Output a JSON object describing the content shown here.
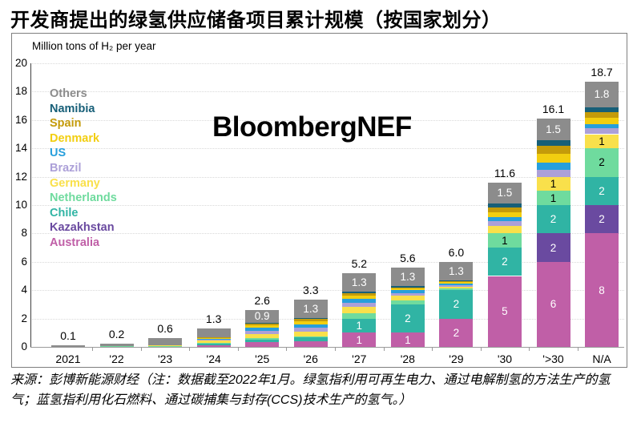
{
  "title": "开发商提出的绿氢供应储备项目累计规模（按国家划分）",
  "watermark": "BloombergNEF",
  "source_note": "来源：彭博新能源财经（注：数据截至2022年1月。绿氢指利用可再生电力、通过电解制氢的方法生产的氢气；蓝氢指利用化石燃料、通过碳捕集与封存(CCS)技术生产的氢气。）",
  "chart_data": {
    "type": "bar",
    "stacked": true,
    "title": "开发商提出的绿氢供应储备项目累计规模（按国家划分）",
    "ylabel": "Million tons of H₂ per year",
    "ylim": [
      0,
      20
    ],
    "ytick_step": 2,
    "grid": "horizontal dotted",
    "legend_position": "inside top-left, colored text, top-to-bottom reverse of stack order",
    "categories": [
      "2021",
      "'22",
      "'23",
      "'24",
      "'25",
      "'26",
      "'27",
      "'28",
      "'29",
      "'30",
      "'>30",
      "N/A"
    ],
    "totals": [
      "0.1",
      "0.2",
      "0.6",
      "1.3",
      "2.6",
      "3.3",
      "5.2",
      "5.6",
      "6.0",
      "11.6",
      "16.1",
      "18.7"
    ],
    "series": [
      {
        "name": "Australia",
        "color": "#c05fa7",
        "label_color": "#ffffff",
        "values": [
          0,
          0,
          0,
          0.1,
          0.35,
          0.4,
          1,
          1,
          2,
          5,
          6,
          8
        ]
      },
      {
        "name": "Kazakhstan",
        "color": "#6a4aa0",
        "label_color": "#ffffff",
        "values": [
          0,
          0,
          0,
          0,
          0,
          0,
          0,
          0,
          0,
          0,
          2,
          2
        ]
      },
      {
        "name": "Chile",
        "color": "#30b4a4",
        "label_color": "#ffffff",
        "values": [
          0,
          0,
          0,
          0.1,
          0.15,
          0.25,
          1,
          2,
          2,
          2,
          2,
          2
        ]
      },
      {
        "name": "Netherlands",
        "color": "#6fdb9e",
        "label_color": "#000000",
        "values": [
          0,
          0.05,
          0.05,
          0.1,
          0.1,
          0.1,
          0.4,
          0.3,
          0.1,
          1,
          1,
          2
        ]
      },
      {
        "name": "Germany",
        "color": "#f9e04b",
        "label_color": "#000000",
        "values": [
          0,
          0,
          0.05,
          0.15,
          0.3,
          0.35,
          0.4,
          0.3,
          0.15,
          0.55,
          1,
          1
        ]
      },
      {
        "name": "Brazil",
        "color": "#aca0d8",
        "label_color": "#000000",
        "values": [
          0,
          0,
          0,
          0.05,
          0.25,
          0.25,
          0.3,
          0.2,
          0.1,
          0.3,
          0.5,
          0.4
        ]
      },
      {
        "name": "US",
        "color": "#279fdc",
        "label_color": "#ffffff",
        "values": [
          0,
          0,
          0,
          0.05,
          0.2,
          0.25,
          0.3,
          0.2,
          0.1,
          0.3,
          0.5,
          0.3
        ]
      },
      {
        "name": "Denmark",
        "color": "#f2ce10",
        "label_color": "#000000",
        "values": [
          0,
          0,
          0,
          0.05,
          0.15,
          0.2,
          0.2,
          0.1,
          0.1,
          0.35,
          0.6,
          0.45
        ]
      },
      {
        "name": "Spain",
        "color": "#c49b0a",
        "label_color": "#ffffff",
        "values": [
          0,
          0,
          0,
          0.05,
          0.15,
          0.15,
          0.2,
          0.1,
          0.1,
          0.35,
          0.6,
          0.4
        ]
      },
      {
        "name": "Namibia",
        "color": "#175f78",
        "label_color": "#ffffff",
        "values": [
          0,
          0,
          0,
          0,
          0.05,
          0.05,
          0.1,
          0.1,
          0.05,
          0.25,
          0.4,
          0.35
        ]
      },
      {
        "name": "Others",
        "color": "#8c8c8c",
        "label_color": "#ffffff",
        "values": [
          0.1,
          0.15,
          0.5,
          0.65,
          0.9,
          1.3,
          1.3,
          1.3,
          1.3,
          1.5,
          1.5,
          1.8
        ]
      }
    ]
  }
}
